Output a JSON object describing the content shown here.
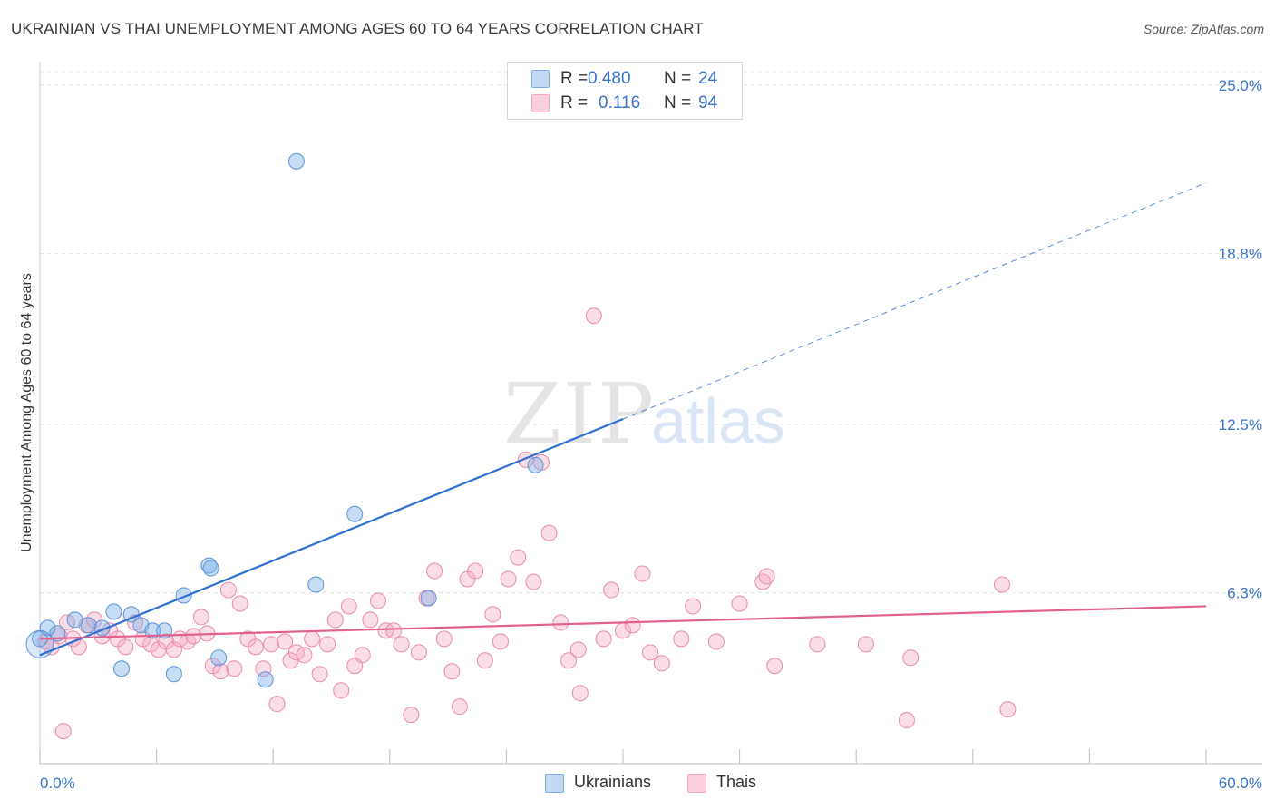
{
  "header": {
    "title": "UKRAINIAN VS THAI UNEMPLOYMENT AMONG AGES 60 TO 64 YEARS CORRELATION CHART",
    "source": "Source: ZipAtlas.com"
  },
  "watermark": {
    "zip": "ZIP",
    "atlas": "atlas"
  },
  "legend": {
    "r_label": "R =",
    "n_label": "N =",
    "ukrainians": {
      "r": "0.480",
      "n": "24",
      "color": "#7aaee8"
    },
    "thais": {
      "r": "0.116",
      "n": "94",
      "color": "#f4a6c0"
    }
  },
  "bottom_legend": {
    "ukrainians": "Ukrainians",
    "thais": "Thais"
  },
  "chart_data": {
    "type": "scatter",
    "title": "UKRAINIAN VS THAI UNEMPLOYMENT AMONG AGES 60 TO 64 YEARS CORRELATION CHART",
    "xlabel": "",
    "ylabel": "Unemployment Among Ages 60 to 64 years",
    "xlim": [
      0,
      60
    ],
    "ylim": [
      0,
      25.8
    ],
    "x_tick_labels": {
      "min": "0.0%",
      "max": "60.0%"
    },
    "y_ticks": [
      6.3,
      12.5,
      18.8,
      25.0
    ],
    "y_tick_labels": [
      "6.3%",
      "12.5%",
      "18.8%",
      "25.0%"
    ],
    "grid": true,
    "series": [
      {
        "name": "Ukrainians",
        "color": "#7aaee8",
        "stroke": "#5b93d6",
        "trend": {
          "x0": 0,
          "y0": 4.0,
          "x1": 30,
          "y1": 12.7,
          "dash_to_x": 60,
          "dash_to_y": 21.4,
          "color": "#2f6fd1"
        },
        "points": [
          [
            0.0,
            4.6
          ],
          [
            0.4,
            5.0
          ],
          [
            0.9,
            4.8
          ],
          [
            1.8,
            5.3
          ],
          [
            2.5,
            5.1
          ],
          [
            3.2,
            5.0
          ],
          [
            3.8,
            5.6
          ],
          [
            4.2,
            3.5
          ],
          [
            4.7,
            5.5
          ],
          [
            5.2,
            5.1
          ],
          [
            5.8,
            4.9
          ],
          [
            6.4,
            4.9
          ],
          [
            6.9,
            3.3
          ],
          [
            7.4,
            6.2
          ],
          [
            8.7,
            7.3
          ],
          [
            8.8,
            7.2
          ],
          [
            9.2,
            3.9
          ],
          [
            11.6,
            3.1
          ],
          [
            13.2,
            22.2
          ],
          [
            14.2,
            6.6
          ],
          [
            16.2,
            9.2
          ],
          [
            20.0,
            6.1
          ],
          [
            25.5,
            11.0
          ],
          [
            0.0,
            4.4
          ]
        ]
      },
      {
        "name": "Thais",
        "color": "#f4a6c0",
        "stroke": "#e88aaa",
        "trend": {
          "x0": 0,
          "y0": 4.6,
          "x1": 60,
          "y1": 5.8,
          "color": "#e2608e"
        },
        "points": [
          [
            0.3,
            4.5
          ],
          [
            0.6,
            4.3
          ],
          [
            1.0,
            4.7
          ],
          [
            1.4,
            5.2
          ],
          [
            1.7,
            4.6
          ],
          [
            2.0,
            4.3
          ],
          [
            2.4,
            5.1
          ],
          [
            2.8,
            5.3
          ],
          [
            3.2,
            4.7
          ],
          [
            3.6,
            4.9
          ],
          [
            4.0,
            4.6
          ],
          [
            4.4,
            4.3
          ],
          [
            4.9,
            5.2
          ],
          [
            5.3,
            4.6
          ],
          [
            5.7,
            4.4
          ],
          [
            6.1,
            4.2
          ],
          [
            6.5,
            4.5
          ],
          [
            6.9,
            4.2
          ],
          [
            7.2,
            4.6
          ],
          [
            7.6,
            4.5
          ],
          [
            7.9,
            4.7
          ],
          [
            8.3,
            5.4
          ],
          [
            8.6,
            4.8
          ],
          [
            8.9,
            3.6
          ],
          [
            9.3,
            3.4
          ],
          [
            9.7,
            6.4
          ],
          [
            10.0,
            3.5
          ],
          [
            10.3,
            5.9
          ],
          [
            10.7,
            4.6
          ],
          [
            11.1,
            4.3
          ],
          [
            11.5,
            3.5
          ],
          [
            11.9,
            4.4
          ],
          [
            12.2,
            2.2
          ],
          [
            12.6,
            4.5
          ],
          [
            12.9,
            3.8
          ],
          [
            13.2,
            4.1
          ],
          [
            13.6,
            4.0
          ],
          [
            14.0,
            4.6
          ],
          [
            14.4,
            3.3
          ],
          [
            14.8,
            4.4
          ],
          [
            15.2,
            5.3
          ],
          [
            15.5,
            2.7
          ],
          [
            15.9,
            5.8
          ],
          [
            16.2,
            3.6
          ],
          [
            16.6,
            4.0
          ],
          [
            17.0,
            5.3
          ],
          [
            17.4,
            6.0
          ],
          [
            17.8,
            4.9
          ],
          [
            18.2,
            4.9
          ],
          [
            18.6,
            4.4
          ],
          [
            19.1,
            1.8
          ],
          [
            19.5,
            4.1
          ],
          [
            19.9,
            6.1
          ],
          [
            20.3,
            7.1
          ],
          [
            20.8,
            4.6
          ],
          [
            21.2,
            3.4
          ],
          [
            21.6,
            2.1
          ],
          [
            22.0,
            6.8
          ],
          [
            22.4,
            7.1
          ],
          [
            22.9,
            3.8
          ],
          [
            23.3,
            5.5
          ],
          [
            23.7,
            4.5
          ],
          [
            24.1,
            6.8
          ],
          [
            24.6,
            7.6
          ],
          [
            25.0,
            11.2
          ],
          [
            25.4,
            6.7
          ],
          [
            25.8,
            11.1
          ],
          [
            26.2,
            8.5
          ],
          [
            26.8,
            5.2
          ],
          [
            27.2,
            3.8
          ],
          [
            27.7,
            4.2
          ],
          [
            27.8,
            2.6
          ],
          [
            28.5,
            16.5
          ],
          [
            29.0,
            4.6
          ],
          [
            29.4,
            6.4
          ],
          [
            30.0,
            4.9
          ],
          [
            30.5,
            5.1
          ],
          [
            31.0,
            7.0
          ],
          [
            31.4,
            4.1
          ],
          [
            32.0,
            3.7
          ],
          [
            33.0,
            4.6
          ],
          [
            33.6,
            5.8
          ],
          [
            34.8,
            4.5
          ],
          [
            36.0,
            5.9
          ],
          [
            37.2,
            6.7
          ],
          [
            37.4,
            6.9
          ],
          [
            37.8,
            3.6
          ],
          [
            40.0,
            4.4
          ],
          [
            42.5,
            4.4
          ],
          [
            44.6,
            1.6
          ],
          [
            44.8,
            3.9
          ],
          [
            49.5,
            6.6
          ],
          [
            49.8,
            2.0
          ],
          [
            1.2,
            1.2
          ]
        ]
      }
    ]
  }
}
